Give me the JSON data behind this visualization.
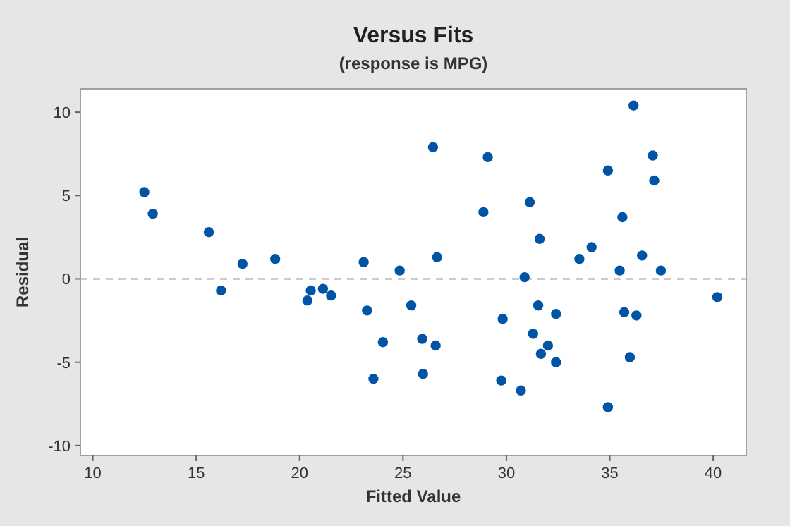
{
  "chart_data": {
    "type": "scatter",
    "title": "Versus Fits",
    "subtitle": "(response is MPG)",
    "xlabel": "Fitted Value",
    "ylabel": "Residual",
    "x": [
      12.49,
      12.9,
      15.61,
      16.2,
      17.24,
      18.82,
      20.38,
      20.54,
      21.13,
      21.52,
      23.1,
      23.26,
      24.03,
      23.57,
      24.84,
      25.4,
      26.45,
      26.65,
      25.93,
      26.58,
      25.97,
      29.1,
      28.89,
      29.82,
      29.75,
      30.7,
      30.88,
      31.13,
      31.61,
      31.54,
      31.29,
      31.67,
      32.01,
      32.4,
      32.4,
      33.53,
      34.12,
      34.91,
      34.91,
      35.61,
      35.48,
      35.7,
      36.29,
      35.97,
      36.15,
      36.56,
      37.08,
      37.15,
      37.47,
      40.2
    ],
    "values": [
      5.2,
      3.9,
      2.8,
      -0.7,
      0.9,
      1.2,
      -1.3,
      -0.7,
      -0.6,
      -1.0,
      1.0,
      -1.9,
      -3.8,
      -6.0,
      0.5,
      -1.6,
      7.9,
      1.3,
      -3.6,
      -4.0,
      -5.7,
      7.3,
      4.0,
      -2.4,
      -6.1,
      -6.7,
      0.1,
      4.6,
      2.4,
      -1.6,
      -3.3,
      -4.5,
      -4.0,
      -2.1,
      -5.0,
      1.2,
      1.9,
      6.5,
      -7.7,
      3.7,
      0.5,
      -2.0,
      -2.2,
      -4.7,
      10.4,
      1.4,
      7.4,
      5.9,
      0.5,
      -1.1
    ],
    "color": "#0054a6",
    "marker": "circle",
    "xlim": [
      9.4,
      41.6
    ],
    "ylim": [
      -10.6,
      11.4
    ],
    "xticks": [
      10,
      15,
      20,
      25,
      30,
      35,
      40
    ],
    "yticks": [
      10,
      5,
      0,
      -5,
      -10
    ],
    "ref_lines": [
      {
        "axis": "y",
        "value": 0,
        "color": "#999999",
        "line_style": "dashed"
      }
    ],
    "grid": false
  }
}
